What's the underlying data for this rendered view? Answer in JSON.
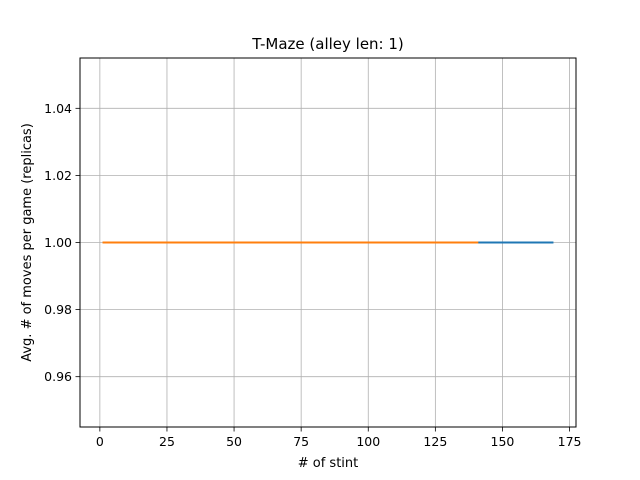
{
  "chart_data": {
    "type": "line",
    "title": "T-Maze (alley len: 1)",
    "xlabel": "# of stint",
    "ylabel": "Avg. # of moves per game (replicas)",
    "xlim": [
      -7.4,
      177.4
    ],
    "ylim": [
      0.945,
      1.055
    ],
    "xticks": [
      0,
      25,
      50,
      75,
      100,
      125,
      150,
      175
    ],
    "xtick_labels": [
      "0",
      "25",
      "50",
      "75",
      "100",
      "125",
      "150",
      "175"
    ],
    "yticks": [
      0.96,
      0.98,
      1.0,
      1.02,
      1.04
    ],
    "ytick_labels": [
      "0.96",
      "0.98",
      "1.00",
      "1.02",
      "1.04"
    ],
    "grid": true,
    "series": [
      {
        "x": [
          1,
          169
        ],
        "y": [
          1.0,
          1.0
        ],
        "color": "#1f77b4"
      },
      {
        "x": [
          1,
          141
        ],
        "y": [
          1.0,
          1.0
        ],
        "color": "#ff7f0e"
      }
    ]
  }
}
